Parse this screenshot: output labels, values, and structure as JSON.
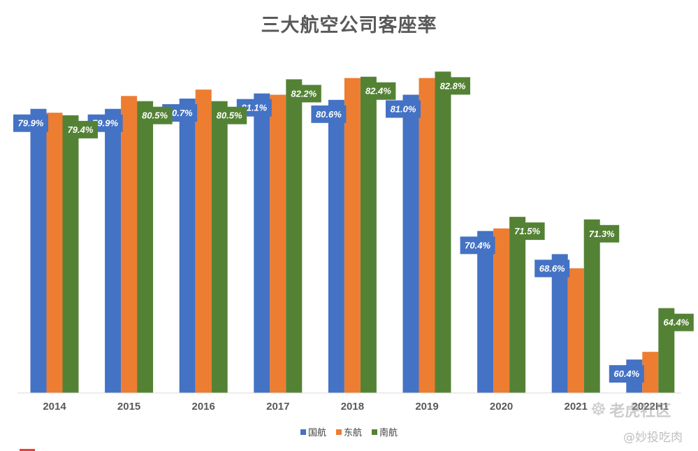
{
  "chart_data": {
    "type": "bar",
    "title": "三大航空公司客座率",
    "categories": [
      "2014",
      "2015",
      "2016",
      "2017",
      "2018",
      "2019",
      "2020",
      "2021",
      "2022H1"
    ],
    "series": [
      {
        "name": "国航",
        "color": "#4472c4",
        "values": [
          79.9,
          79.9,
          80.7,
          81.1,
          80.6,
          81.0,
          70.4,
          68.6,
          60.4
        ],
        "labeled": true
      },
      {
        "name": "东航",
        "color": "#ed7d31",
        "values": [
          79.6,
          80.9,
          81.4,
          81.0,
          82.3,
          82.3,
          70.6,
          67.5,
          61.0
        ],
        "labeled": false
      },
      {
        "name": "南航",
        "color": "#548235",
        "values": [
          79.4,
          80.5,
          80.5,
          82.2,
          82.4,
          82.8,
          71.5,
          71.3,
          64.4
        ],
        "labeled": true
      }
    ],
    "value_suffix": "%",
    "xlabel": "",
    "ylabel": "",
    "ylim": [
      57.8,
      83.8
    ],
    "grid": false,
    "legend": "bottom"
  },
  "watermark": {
    "brand": "老虎社区",
    "handle": "@妙投吃肉"
  }
}
